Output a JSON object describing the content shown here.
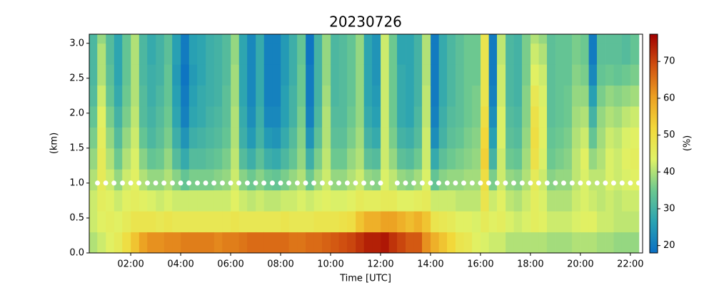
{
  "chart_data": {
    "type": "heatmap",
    "title": "20230726",
    "x_label": "Time [UTC]",
    "y_label": "(km)",
    "colorbar_label": "(%)",
    "xlim": [
      0.34,
      22.49
    ],
    "xticks": [
      {
        "value": 2,
        "label": "02:00"
      },
      {
        "value": 4,
        "label": "04:00"
      },
      {
        "value": 6,
        "label": "06:00"
      },
      {
        "value": 8,
        "label": "08:00"
      },
      {
        "value": 10,
        "label": "10:00"
      },
      {
        "value": 12,
        "label": "12:00"
      },
      {
        "value": 14,
        "label": "14:00"
      },
      {
        "value": 16,
        "label": "16:00"
      },
      {
        "value": 18,
        "label": "18:00"
      },
      {
        "value": 20,
        "label": "20:00"
      },
      {
        "value": 22,
        "label": "22:00"
      }
    ],
    "ylim": [
      0,
      3.13
    ],
    "yticks": [
      {
        "value": 0,
        "label": "0.0"
      },
      0.5,
      {
        "value": 1,
        "label": "1.0"
      },
      1.5,
      {
        "value": 2,
        "label": "2.0"
      },
      2.5,
      {
        "value": 3,
        "label": "3.0"
      }
    ],
    "zlim": [
      18,
      77.4
    ],
    "zticks": [
      20,
      30,
      40,
      50,
      60,
      70
    ],
    "colorscale": [
      "#0a6fc4",
      "#2aa3b2",
      "#6cc890",
      "#e0f266",
      "#f2d83a",
      "#eca022",
      "#d05010",
      "#a00000"
    ],
    "x": [
      0.5,
      0.83,
      1.17,
      1.5,
      1.83,
      2.17,
      2.5,
      2.83,
      3.17,
      3.5,
      3.83,
      4.17,
      4.5,
      4.83,
      5.17,
      5.5,
      5.83,
      6.17,
      6.5,
      6.83,
      7.17,
      7.5,
      7.83,
      8.17,
      8.5,
      8.83,
      9.17,
      9.5,
      9.83,
      10.17,
      10.5,
      10.83,
      11.17,
      11.5,
      11.83,
      12.17,
      12.5,
      12.83,
      13.17,
      13.5,
      13.83,
      14.17,
      14.5,
      14.83,
      15.17,
      15.5,
      15.83,
      16.17,
      16.5,
      16.83,
      17.17,
      17.5,
      17.83,
      18.17,
      18.5,
      18.83,
      19.17,
      19.5,
      19.83,
      20.17,
      20.5,
      20.83,
      21.17,
      21.5,
      21.83,
      22.17
    ],
    "y": [
      0.15,
      0.45,
      0.75,
      1.05,
      1.35,
      1.65,
      1.95,
      2.25,
      2.55,
      2.85,
      3.15
    ],
    "z": [
      [
        40,
        42,
        42,
        40,
        38,
        36,
        34,
        32,
        31,
        31,
        31
      ],
      [
        42,
        44,
        45,
        46,
        46,
        45,
        44,
        42,
        40,
        40,
        38
      ],
      [
        44,
        45,
        44,
        42,
        40,
        38,
        36,
        34,
        33,
        32,
        32
      ],
      [
        46,
        44,
        42,
        38,
        35,
        32,
        30,
        28,
        27,
        27,
        27
      ],
      [
        50,
        46,
        44,
        42,
        40,
        38,
        36,
        35,
        34,
        34,
        34
      ],
      [
        55,
        48,
        45,
        44,
        43,
        42,
        41,
        40,
        40,
        40,
        40
      ],
      [
        60,
        48,
        44,
        40,
        37,
        34,
        32,
        32,
        31,
        31,
        31
      ],
      [
        62,
        48,
        43,
        38,
        34,
        31,
        30,
        29,
        29,
        28,
        28
      ],
      [
        62,
        47,
        42,
        38,
        35,
        33,
        32,
        31,
        30,
        30,
        30
      ],
      [
        63,
        48,
        43,
        40,
        38,
        36,
        35,
        34,
        34,
        33,
        33
      ],
      [
        63,
        47,
        42,
        37,
        32,
        29,
        27,
        26,
        25,
        26,
        26
      ],
      [
        64,
        47,
        42,
        34,
        28,
        24,
        21,
        20,
        19,
        20,
        20
      ],
      [
        64,
        47,
        42,
        36,
        32,
        29,
        27,
        26,
        25,
        26,
        26
      ],
      [
        64,
        47,
        42,
        36,
        32,
        30,
        28,
        28,
        27,
        27,
        27
      ],
      [
        64,
        47,
        42,
        36,
        33,
        31,
        30,
        29,
        29,
        29,
        29
      ],
      [
        63,
        47,
        42,
        37,
        34,
        32,
        31,
        30,
        30,
        30,
        30
      ],
      [
        64,
        47,
        42,
        38,
        36,
        34,
        33,
        33,
        32,
        32,
        32
      ],
      [
        64,
        48,
        44,
        42,
        41,
        40,
        40,
        39,
        39,
        38,
        38
      ],
      [
        65,
        47,
        42,
        37,
        32,
        29,
        28,
        27,
        27,
        27,
        27
      ],
      [
        66,
        47,
        41,
        35,
        29,
        25,
        23,
        22,
        22,
        22,
        22
      ],
      [
        66,
        47,
        42,
        37,
        33,
        30,
        29,
        28,
        28,
        28,
        28
      ],
      [
        66,
        47,
        41,
        35,
        29,
        25,
        22,
        21,
        21,
        21,
        21
      ],
      [
        66,
        47,
        41,
        34,
        28,
        24,
        22,
        21,
        21,
        21,
        21
      ],
      [
        66,
        48,
        42,
        36,
        31,
        28,
        26,
        26,
        25,
        25,
        25
      ],
      [
        65,
        47,
        42,
        38,
        34,
        32,
        30,
        30,
        29,
        29,
        29
      ],
      [
        65,
        47,
        43,
        40,
        38,
        37,
        36,
        35,
        35,
        34,
        34
      ],
      [
        66,
        47,
        42,
        35,
        29,
        24,
        21,
        20,
        20,
        19,
        19
      ],
      [
        66,
        48,
        43,
        39,
        36,
        33,
        31,
        30,
        30,
        30,
        30
      ],
      [
        67,
        48,
        44,
        42,
        41,
        40,
        40,
        39,
        38,
        38,
        38
      ],
      [
        68,
        48,
        43,
        38,
        35,
        33,
        32,
        31,
        31,
        31,
        31
      ],
      [
        69,
        49,
        43,
        38,
        35,
        33,
        32,
        32,
        32,
        32,
        32
      ],
      [
        70,
        50,
        44,
        40,
        38,
        36,
        35,
        34,
        34,
        34,
        34
      ],
      [
        72,
        55,
        46,
        42,
        40,
        39,
        38,
        38,
        38,
        38,
        38
      ],
      [
        74,
        58,
        45,
        38,
        33,
        30,
        28,
        27,
        27,
        27,
        27
      ],
      [
        74,
        58,
        45,
        37,
        32,
        28,
        26,
        25,
        24,
        24,
        24
      ],
      [
        75,
        60,
        46,
        43,
        42,
        42,
        42,
        42,
        42,
        42,
        42
      ],
      [
        72,
        60,
        46,
        41,
        38,
        36,
        35,
        35,
        35,
        35,
        35
      ],
      [
        70,
        58,
        44,
        38,
        33,
        30,
        28,
        28,
        28,
        27,
        27
      ],
      [
        68,
        56,
        44,
        37,
        32,
        29,
        27,
        27,
        27,
        27,
        27
      ],
      [
        68,
        58,
        45,
        39,
        35,
        32,
        31,
        30,
        30,
        30,
        30
      ],
      [
        62,
        55,
        46,
        43,
        42,
        42,
        41,
        41,
        40,
        40,
        40
      ],
      [
        58,
        48,
        42,
        34,
        28,
        23,
        21,
        20,
        20,
        20,
        20
      ],
      [
        55,
        47,
        42,
        37,
        33,
        30,
        29,
        28,
        28,
        28,
        28
      ],
      [
        52,
        46,
        42,
        38,
        35,
        33,
        32,
        31,
        31,
        31,
        31
      ],
      [
        48,
        44,
        41,
        38,
        36,
        34,
        33,
        33,
        33,
        33,
        33
      ],
      [
        47,
        44,
        41,
        39,
        37,
        36,
        35,
        35,
        35,
        35,
        35
      ],
      [
        44,
        43,
        41,
        39,
        38,
        37,
        36,
        36,
        35,
        35,
        35
      ],
      [
        43,
        46,
        48,
        50,
        53,
        52,
        50,
        48,
        48,
        48,
        48
      ],
      [
        42,
        44,
        42,
        36,
        30,
        26,
        23,
        21,
        20,
        20,
        20
      ],
      [
        42,
        45,
        44,
        42,
        42,
        43,
        43,
        42,
        42,
        41,
        41
      ],
      [
        40,
        43,
        41,
        38,
        35,
        33,
        32,
        31,
        31,
        31,
        31
      ],
      [
        40,
        42,
        40,
        37,
        34,
        32,
        31,
        30,
        30,
        30,
        30
      ],
      [
        40,
        43,
        42,
        40,
        39,
        38,
        37,
        37,
        36,
        36,
        36
      ],
      [
        40,
        45,
        45,
        46,
        49,
        50,
        49,
        47,
        44,
        42,
        40
      ],
      [
        40,
        44,
        43,
        42,
        43,
        44,
        44,
        43,
        42,
        40,
        38
      ],
      [
        39,
        42,
        40,
        37,
        35,
        34,
        33,
        33,
        33,
        33,
        33
      ],
      [
        39,
        42,
        40,
        38,
        36,
        35,
        34,
        34,
        34,
        34,
        34
      ],
      [
        39,
        42,
        40,
        38,
        37,
        36,
        35,
        35,
        34,
        34,
        34
      ],
      [
        40,
        43,
        42,
        41,
        41,
        40,
        39,
        38,
        37,
        36,
        36
      ],
      [
        40,
        44,
        43,
        43,
        44,
        42,
        40,
        38,
        36,
        35,
        35
      ],
      [
        40,
        44,
        42,
        41,
        38,
        34,
        30,
        26,
        22,
        20,
        20
      ],
      [
        39,
        42,
        41,
        41,
        40,
        39,
        38,
        36,
        34,
        33,
        33
      ],
      [
        39,
        42,
        42,
        43,
        43,
        42,
        40,
        38,
        35,
        33,
        33
      ],
      [
        38,
        41,
        41,
        42,
        42,
        41,
        39,
        37,
        34,
        33,
        33
      ],
      [
        38,
        41,
        42,
        43,
        44,
        43,
        41,
        38,
        35,
        32,
        32
      ],
      [
        38,
        41,
        42,
        44,
        45,
        44,
        42,
        39,
        36,
        34,
        34
      ]
    ],
    "markers": {
      "color": "#ffffff",
      "x": [
        0.67,
        1,
        1.33,
        1.67,
        2,
        2.33,
        2.67,
        3,
        3.33,
        3.67,
        4,
        4.33,
        4.67,
        5,
        5.33,
        5.67,
        6,
        6.33,
        6.67,
        7,
        7.33,
        7.67,
        8,
        8.33,
        8.67,
        9,
        9.33,
        9.67,
        10,
        10.33,
        10.67,
        11,
        11.33,
        11.67,
        12,
        12.33,
        12.67,
        13,
        13.33,
        13.67,
        14,
        14.33,
        14.67,
        15,
        15.33,
        15.67,
        16,
        16.33,
        16.67,
        17,
        17.33,
        17.67,
        18,
        18.33,
        18.67,
        19,
        19.33,
        19.67,
        20,
        20.33,
        20.67,
        21,
        21.33,
        21.67,
        22,
        22.33
      ],
      "values": [
        1,
        1,
        1,
        1,
        1,
        1,
        1,
        1,
        1,
        1,
        1,
        1,
        1,
        1,
        1,
        1,
        1,
        1,
        1,
        1,
        1,
        1,
        1,
        1,
        1,
        1,
        1,
        1,
        1,
        1,
        1,
        1,
        1,
        1,
        1,
        null,
        1,
        1,
        1,
        1,
        1,
        1,
        1,
        1,
        1,
        1,
        1,
        1,
        1,
        1,
        1,
        1,
        1,
        1,
        1,
        1,
        1,
        1,
        1,
        1,
        1,
        1,
        1,
        1,
        1,
        1
      ]
    }
  }
}
